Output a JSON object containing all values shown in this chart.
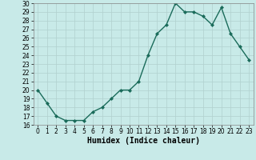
{
  "x": [
    0,
    1,
    2,
    3,
    4,
    5,
    6,
    7,
    8,
    9,
    10,
    11,
    12,
    13,
    14,
    15,
    16,
    17,
    18,
    19,
    20,
    21,
    22,
    23
  ],
  "y": [
    20,
    18.5,
    17,
    16.5,
    16.5,
    16.5,
    17.5,
    18,
    19,
    20,
    20,
    21,
    24,
    26.5,
    27.5,
    30,
    29,
    29,
    28.5,
    27.5,
    29.5,
    26.5,
    25,
    23.5
  ],
  "line_color": "#1a6b5a",
  "marker": "D",
  "marker_size": 2,
  "bg_color": "#c8eae8",
  "grid_color": "#b0d0ce",
  "xlabel": "Humidex (Indice chaleur)",
  "xlim": [
    -0.5,
    23.5
  ],
  "ylim": [
    16,
    30
  ],
  "yticks": [
    16,
    17,
    18,
    19,
    20,
    21,
    22,
    23,
    24,
    25,
    26,
    27,
    28,
    29,
    30
  ],
  "xticks": [
    0,
    1,
    2,
    3,
    4,
    5,
    6,
    7,
    8,
    9,
    10,
    11,
    12,
    13,
    14,
    15,
    16,
    17,
    18,
    19,
    20,
    21,
    22,
    23
  ],
  "tick_fontsize": 5.5,
  "xlabel_fontsize": 7,
  "linewidth": 1.0
}
